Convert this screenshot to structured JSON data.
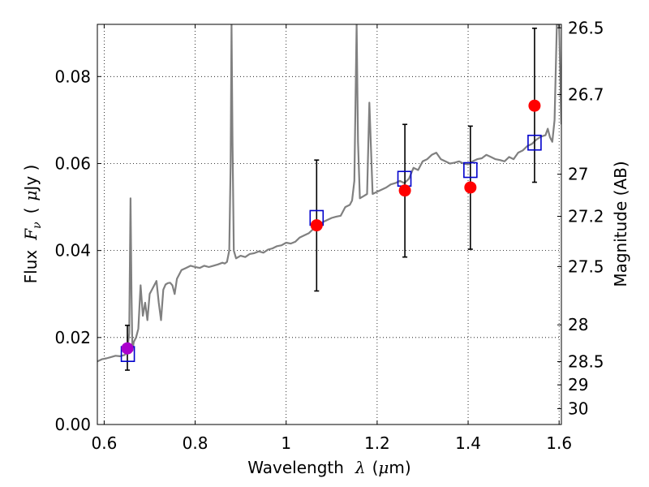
{
  "chart_data": {
    "type": "scatter",
    "title": "",
    "xlabel": {
      "prefix": "Wavelength",
      "symbol": "λ",
      "unit_open": "(",
      "unit_mu": "μ",
      "unit_rest": "m)"
    },
    "ylabel": {
      "prefix": "Flux",
      "symbol": "F",
      "subscript": "ν",
      "unit_open": "(",
      "unit_mu": "μ",
      "unit_rest": "Jy )"
    },
    "y2label": "Magnitude (AB)",
    "xlim": [
      0.585,
      1.605
    ],
    "ylim": [
      0.0,
      0.092
    ],
    "grid": true,
    "x_ticks": [
      {
        "value": 0.6,
        "label": "0.6"
      },
      {
        "value": 0.8,
        "label": "0.8"
      },
      {
        "value": 1.0,
        "label": "1"
      },
      {
        "value": 1.2,
        "label": "1.2"
      },
      {
        "value": 1.4,
        "label": "1.4"
      },
      {
        "value": 1.6,
        "label": "1.6"
      }
    ],
    "y_ticks": [
      {
        "value": 0.0,
        "label": "0.00"
      },
      {
        "value": 0.02,
        "label": "0.02"
      },
      {
        "value": 0.04,
        "label": "0.04"
      },
      {
        "value": 0.06,
        "label": "0.06"
      },
      {
        "value": 0.08,
        "label": "0.08"
      }
    ],
    "y2_ticks": [
      {
        "mag": 26.5,
        "label": "26.5"
      },
      {
        "mag": 26.7,
        "label": "26.7"
      },
      {
        "mag": 27.0,
        "label": "27"
      },
      {
        "mag": 27.2,
        "label": "27.2"
      },
      {
        "mag": 27.5,
        "label": "27.5"
      },
      {
        "mag": 28.0,
        "label": "28"
      },
      {
        "mag": 28.5,
        "label": "28.5"
      },
      {
        "mag": 29.0,
        "label": "29"
      },
      {
        "mag": 30.0,
        "label": "30"
      }
    ],
    "colors": {
      "spectrum": "#808080",
      "observed": "#ff0000",
      "model_box": "#0000cc",
      "errorbar": "#000000",
      "overlap": "#aa00cc"
    },
    "series": [
      {
        "kind": "spectrum-line",
        "x": [
          0.585,
          0.595,
          0.605,
          0.615,
          0.625,
          0.635,
          0.645,
          0.65,
          0.655,
          0.658,
          0.66,
          0.662,
          0.665,
          0.67,
          0.675,
          0.68,
          0.685,
          0.69,
          0.695,
          0.7,
          0.705,
          0.71,
          0.715,
          0.72,
          0.725,
          0.73,
          0.735,
          0.74,
          0.745,
          0.75,
          0.755,
          0.76,
          0.77,
          0.78,
          0.79,
          0.8,
          0.81,
          0.82,
          0.83,
          0.84,
          0.85,
          0.86,
          0.865,
          0.87,
          0.875,
          0.878,
          0.88,
          0.882,
          0.885,
          0.89,
          0.9,
          0.91,
          0.92,
          0.93,
          0.94,
          0.95,
          0.96,
          0.97,
          0.98,
          0.99,
          1.0,
          1.01,
          1.02,
          1.03,
          1.04,
          1.05,
          1.06,
          1.07,
          1.08,
          1.09,
          1.1,
          1.11,
          1.12,
          1.13,
          1.14,
          1.145,
          1.15,
          1.155,
          1.158,
          1.162,
          1.17,
          1.178,
          1.183,
          1.19,
          1.2,
          1.21,
          1.22,
          1.23,
          1.24,
          1.25,
          1.26,
          1.27,
          1.28,
          1.29,
          1.3,
          1.31,
          1.32,
          1.33,
          1.34,
          1.35,
          1.36,
          1.37,
          1.38,
          1.39,
          1.4,
          1.41,
          1.42,
          1.43,
          1.44,
          1.45,
          1.46,
          1.47,
          1.48,
          1.49,
          1.5,
          1.51,
          1.52,
          1.53,
          1.54,
          1.55,
          1.56,
          1.57,
          1.575,
          1.58,
          1.585,
          1.59,
          1.595,
          1.6,
          1.605
        ],
        "y": [
          0.0145,
          0.015,
          0.0152,
          0.0155,
          0.0158,
          0.0157,
          0.016,
          0.0165,
          0.021,
          0.052,
          0.03,
          0.017,
          0.019,
          0.02,
          0.022,
          0.032,
          0.025,
          0.028,
          0.024,
          0.03,
          0.031,
          0.032,
          0.033,
          0.028,
          0.024,
          0.031,
          0.0322,
          0.0325,
          0.0326,
          0.032,
          0.03,
          0.0335,
          0.0355,
          0.036,
          0.0365,
          0.0362,
          0.036,
          0.0365,
          0.0362,
          0.0365,
          0.0368,
          0.0372,
          0.037,
          0.0374,
          0.04,
          0.06,
          0.092,
          0.065,
          0.04,
          0.0382,
          0.0388,
          0.0385,
          0.0392,
          0.0394,
          0.0398,
          0.0395,
          0.0402,
          0.0405,
          0.041,
          0.0412,
          0.0418,
          0.0416,
          0.042,
          0.043,
          0.0435,
          0.044,
          0.045,
          0.046,
          0.0465,
          0.047,
          0.0475,
          0.0478,
          0.048,
          0.05,
          0.0505,
          0.0515,
          0.056,
          0.092,
          0.065,
          0.052,
          0.0525,
          0.053,
          0.074,
          0.053,
          0.0535,
          0.054,
          0.0545,
          0.0552,
          0.0555,
          0.056,
          0.0555,
          0.0565,
          0.059,
          0.0585,
          0.0605,
          0.061,
          0.062,
          0.0625,
          0.061,
          0.0605,
          0.06,
          0.0602,
          0.0605,
          0.06,
          0.0598,
          0.0605,
          0.061,
          0.0612,
          0.062,
          0.0615,
          0.061,
          0.0608,
          0.0605,
          0.0615,
          0.061,
          0.0625,
          0.063,
          0.064,
          0.0645,
          0.0655,
          0.0662,
          0.0665,
          0.068,
          0.066,
          0.065,
          0.07,
          0.092,
          0.092,
          0.069
        ]
      },
      {
        "kind": "model-boxes",
        "x": [
          0.652,
          1.067,
          1.26,
          1.405,
          1.546
        ],
        "y": [
          0.0162,
          0.0475,
          0.0565,
          0.0585,
          0.0648
        ]
      },
      {
        "kind": "observed-points",
        "x": [
          0.651,
          1.067,
          1.261,
          1.405,
          1.546
        ],
        "y": [
          0.0175,
          0.0458,
          0.0538,
          0.0545,
          0.0733
        ],
        "err_low": [
          0.0125,
          0.0307,
          0.0385,
          0.0403,
          0.0557
        ],
        "err_high": [
          0.0228,
          0.0608,
          0.069,
          0.0686,
          0.0911
        ]
      }
    ]
  }
}
